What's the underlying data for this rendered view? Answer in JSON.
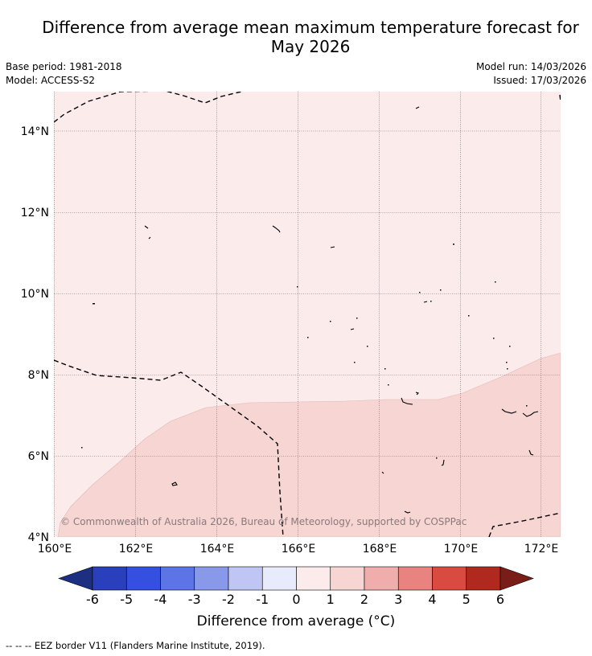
{
  "title_line1": "Difference from average mean maximum temperature forecast for",
  "title_line2": "May 2026",
  "base_period": "Base period: 1981-2018",
  "model": "Model: ACCESS-S2",
  "model_run": "Model run: 14/03/2026",
  "issued": "Issued: 17/03/2026",
  "copyright": "© Commonwealth of Australia 2026, Bureau of Meteorology, supported by COSPPac",
  "lat_labels": [
    "14°N",
    "12°N",
    "10°N",
    "8°N",
    "6°N",
    "4°N"
  ],
  "lon_labels": [
    "160°E",
    "162°E",
    "164°E",
    "166°E",
    "168°E",
    "170°E",
    "172°E"
  ],
  "colorbar": {
    "title": "Difference from average (°C)",
    "ticks": [
      "-6",
      "-5",
      "-4",
      "-3",
      "-2",
      "-1",
      "0",
      "1",
      "2",
      "3",
      "4",
      "5",
      "6"
    ],
    "colors": [
      "#1c2f80",
      "#2a3fbc",
      "#3550e0",
      "#5d74e6",
      "#8899ea",
      "#bfc6f4",
      "#e8ebfc",
      "#fbebea",
      "#f6d5d3",
      "#efaeab",
      "#e8837f",
      "#d94a40",
      "#b0291f",
      "#7a1c17"
    ]
  },
  "footer": "-- -- -- EEZ border V11 (Flanders Marine Institute, 2019).",
  "map_fill_colors": {
    "zero_to_one": "#fbebea",
    "one_to_two": "#f6d5d3"
  }
}
